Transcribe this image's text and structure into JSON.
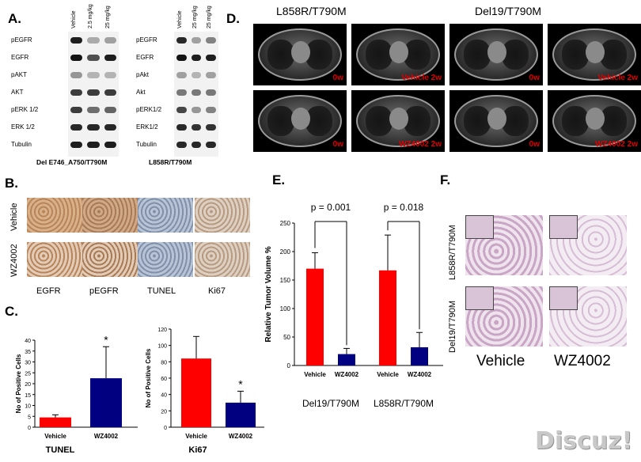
{
  "panels": {
    "a": "A.",
    "b": "B.",
    "c": "C.",
    "d": "D.",
    "e": "E.",
    "f": "F."
  },
  "panel_a": {
    "left": {
      "lanes": [
        "Vehicle",
        "2.5 mg/kg",
        "25 mg/kg"
      ],
      "rows": [
        "pEGFR",
        "EGFR",
        "pAKT",
        "AKT",
        "pERK 1/2",
        "ERK 1/2",
        "Tubulin"
      ],
      "caption": "Del E746_A750/T790M"
    },
    "right": {
      "lanes": [
        "Vehicle",
        "25 mg/kg",
        "25 mg/kg"
      ],
      "rows": [
        "pEGFR",
        "EGFR",
        "pAkt",
        "Akt",
        "pERK1/2",
        "ERK1/2",
        "Tubulin"
      ],
      "caption": "L858R/T790M"
    }
  },
  "panel_b": {
    "rows": [
      "Vehicle",
      "WZ4002"
    ],
    "cols": [
      "EGFR",
      "pEGFR",
      "TUNEL",
      "Ki67"
    ]
  },
  "panel_d": {
    "titles": [
      "L858R/T790M",
      "Del19/T790M"
    ],
    "labels": [
      "0w",
      "Vehicle 2w",
      "0w",
      "WZ4002 2w",
      "0w",
      "Vehicle 2w",
      "0w",
      "WZ4002 2w"
    ]
  },
  "panel_f": {
    "rows": [
      "L858R/T790M",
      "Del19/T790M"
    ],
    "cols": [
      "Vehicle",
      "WZ4002"
    ]
  },
  "chart_data": [
    {
      "type": "bar",
      "panel": "C-TUNEL",
      "title": "TUNEL",
      "ylabel": "No of Positive Cells",
      "categories": [
        "Vehicle",
        "WZ4002"
      ],
      "values": [
        4.5,
        22.5
      ],
      "errors": [
        1.2,
        14.5
      ],
      "colors": [
        "#ff0000",
        "#000080"
      ],
      "ylim": [
        0,
        40
      ],
      "yticks": [
        0,
        5,
        10,
        15,
        20,
        25,
        30,
        35,
        40
      ],
      "annotations": [
        "*"
      ]
    },
    {
      "type": "bar",
      "panel": "C-Ki67",
      "title": "Ki67",
      "ylabel": "No of Positive Cells",
      "categories": [
        "Vehicle",
        "WZ4002"
      ],
      "values": [
        84,
        30
      ],
      "errors": [
        27,
        14
      ],
      "colors": [
        "#ff0000",
        "#000080"
      ],
      "ylim": [
        0,
        120
      ],
      "yticks": [
        0,
        20,
        40,
        60,
        80,
        100,
        120
      ],
      "annotations": [
        "*"
      ]
    },
    {
      "type": "bar",
      "panel": "E",
      "ylabel": "Relative Tumor Volume %",
      "categories": [
        "Vehicle",
        "WZ4002",
        "Vehicle",
        "WZ4002"
      ],
      "groups": [
        "Del19/T790M",
        "L858R/T790M"
      ],
      "values": [
        170,
        20,
        167,
        32
      ],
      "errors": [
        28,
        10,
        62,
        26
      ],
      "colors": [
        "#ff0000",
        "#000080",
        "#ff0000",
        "#000080"
      ],
      "ylim": [
        0,
        250
      ],
      "yticks": [
        0,
        50,
        100,
        150,
        200,
        250
      ],
      "pvalues": [
        "p = 0.001",
        "p = 0.018"
      ]
    }
  ],
  "watermark": "Discuz!"
}
